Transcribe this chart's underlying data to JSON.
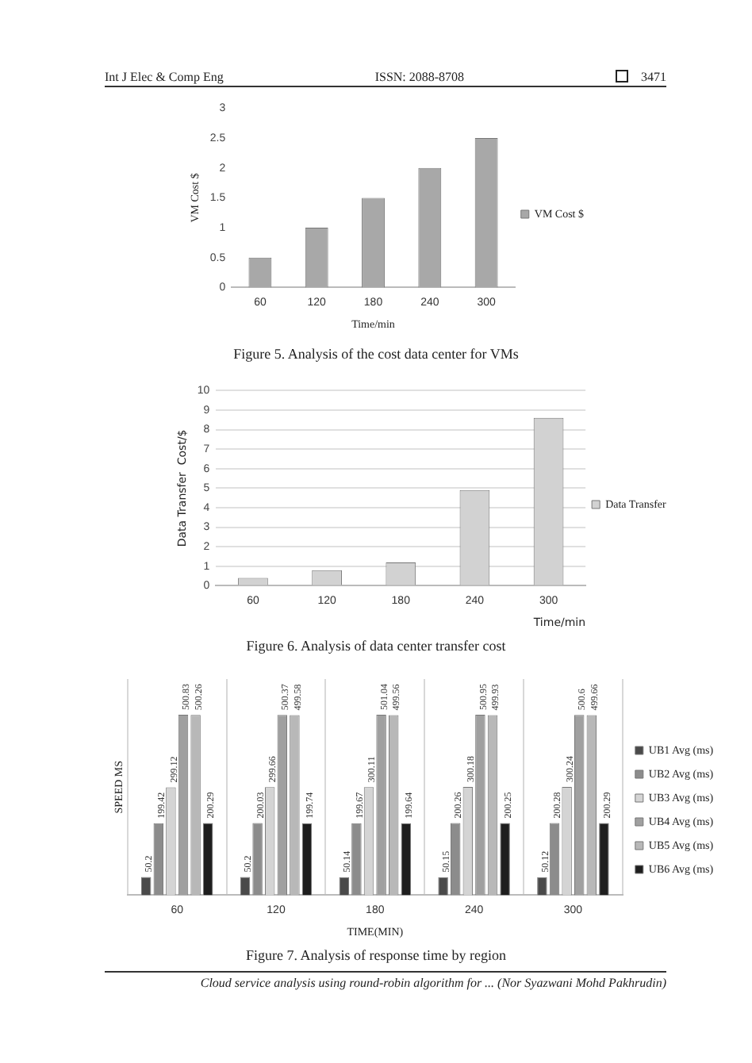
{
  "chart_data": [
    {
      "type": "bar",
      "xlabel": "Time/min",
      "ylabel": "VM Cost $",
      "categories": [
        "60",
        "120",
        "180",
        "240",
        "300"
      ],
      "series": [
        {
          "name": "VM Cost $",
          "color": "#a8a8a8",
          "values": [
            0.5,
            1,
            1.5,
            2,
            2.5
          ]
        }
      ],
      "ylim": [
        0,
        3
      ],
      "yticks": [
        0,
        0.5,
        1,
        1.5,
        2,
        2.5,
        3
      ],
      "grid": false,
      "legend": "right",
      "annotations": [
        "Int J Elec & Comp Eng",
        "ISSN: 2088-8708",
        "3471",
        "Figure 5. Analysis of the cost data center for VMs"
      ]
    },
    {
      "type": "bar",
      "xlabel": "Time/min",
      "ylabel": "Data Transfer  Cost/$",
      "categories": [
        "60",
        "120",
        "180",
        "240",
        "300"
      ],
      "series": [
        {
          "name": "Data Transfer",
          "color": "#d2d2d2",
          "values": [
            0.4,
            0.8,
            1.2,
            4.9,
            8.6
          ]
        }
      ],
      "ylim": [
        0,
        10
      ],
      "yticks": [
        0,
        1,
        2,
        3,
        4,
        5,
        6,
        7,
        8,
        9,
        10
      ],
      "grid": "y",
      "legend": "right",
      "annotations": [
        "Figure 6. Analysis of data center transfer cost"
      ]
    },
    {
      "type": "bar",
      "xlabel": "TIME(MIN)",
      "ylabel": "SPEED MS",
      "categories": [
        "60",
        "120",
        "180",
        "240",
        "300"
      ],
      "series": [
        {
          "name": "UB1 Avg (ms)",
          "color": "#4a4a4a",
          "values": [
            50.2,
            50.2,
            50.14,
            50.15,
            50.12
          ]
        },
        {
          "name": "UB2 Avg (ms)",
          "color": "#8c8c8c",
          "values": [
            199.42,
            200.03,
            199.67,
            200.26,
            200.28
          ]
        },
        {
          "name": "UB3 Avg (ms)",
          "color": "#d4d4d4",
          "values": [
            299.12,
            299.66,
            300.11,
            300.18,
            300.24
          ]
        },
        {
          "name": "UB4 Avg (ms)",
          "color": "#a0a0a0",
          "values": [
            500.83,
            500.37,
            501.04,
            500.95,
            500.6
          ]
        },
        {
          "name": "UB5 Avg (ms)",
          "color": "#b8b8b8",
          "values": [
            500.26,
            499.58,
            499.56,
            499.93,
            499.66
          ]
        },
        {
          "name": "UB6 Avg (ms)",
          "color": "#1e1e1e",
          "values": [
            200.29,
            199.74,
            199.64,
            200.25,
            200.29
          ]
        }
      ],
      "data_labels": true,
      "tick_labels": "x",
      "grid": "x",
      "legend": "right",
      "annotations": [
        "Figure 7. Analysis of response time by region",
        "Cloud service analysis using round-robin algorithm for ... (Nor Syazwani Mohd Pakhrudin)"
      ]
    }
  ]
}
